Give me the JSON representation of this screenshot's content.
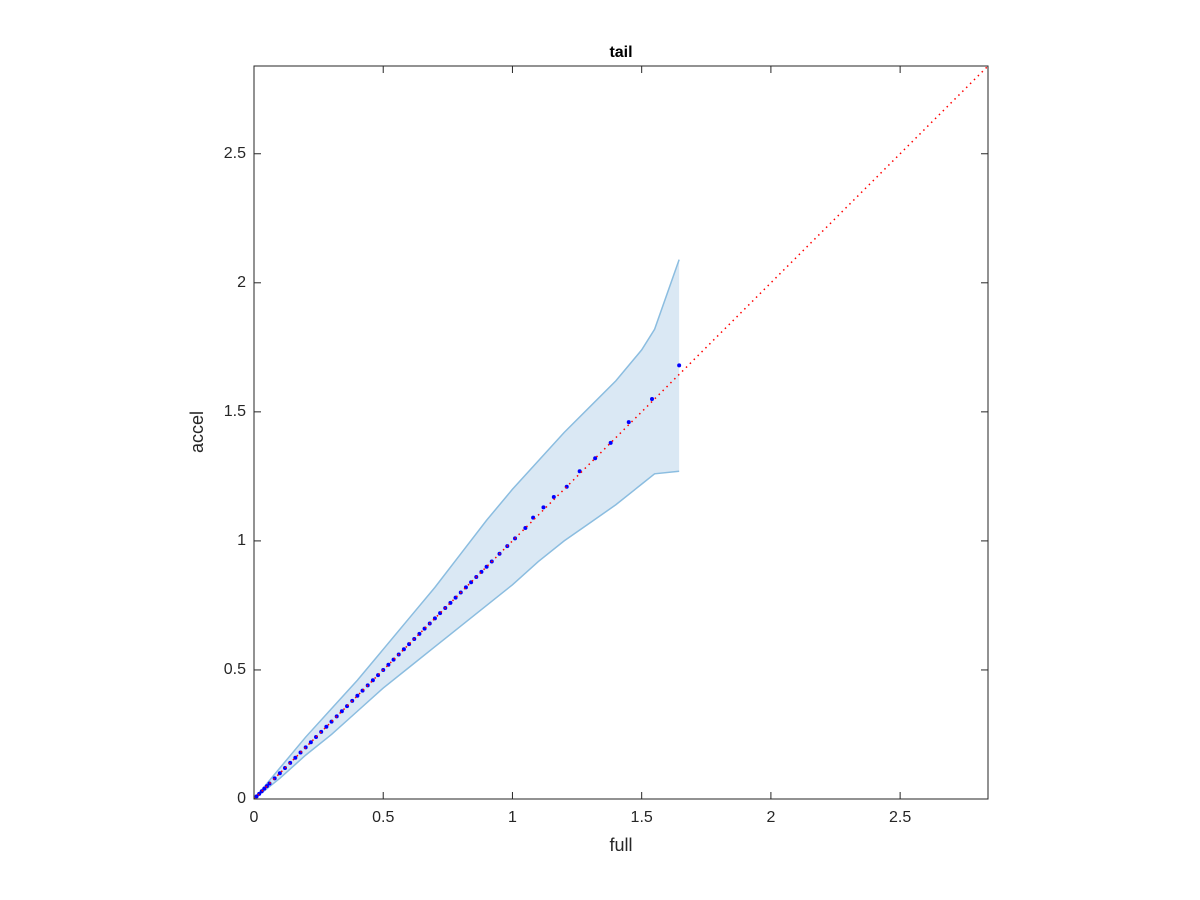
{
  "chart_data": {
    "type": "scatter",
    "title": "tail",
    "xlabel": "full",
    "ylabel": "accel",
    "xlim": [
      0,
      2.84
    ],
    "ylim": [
      0,
      2.84
    ],
    "xticks": [
      0,
      0.5,
      1,
      1.5,
      2,
      2.5
    ],
    "yticks": [
      0,
      0.5,
      1,
      1.5,
      2,
      2.5
    ],
    "points": {
      "color": "#0000ff",
      "x": [
        0.01,
        0.02,
        0.03,
        0.04,
        0.05,
        0.06,
        0.08,
        0.1,
        0.12,
        0.14,
        0.16,
        0.18,
        0.2,
        0.22,
        0.24,
        0.26,
        0.28,
        0.3,
        0.32,
        0.34,
        0.36,
        0.38,
        0.4,
        0.42,
        0.44,
        0.46,
        0.48,
        0.5,
        0.52,
        0.54,
        0.56,
        0.58,
        0.6,
        0.62,
        0.64,
        0.66,
        0.68,
        0.7,
        0.72,
        0.74,
        0.76,
        0.78,
        0.8,
        0.82,
        0.84,
        0.86,
        0.88,
        0.9,
        0.92,
        0.95,
        0.98,
        1.01,
        1.05,
        1.08,
        1.12,
        1.16,
        1.21,
        1.26,
        1.32,
        1.38,
        1.45,
        1.54,
        1.645
      ],
      "y": [
        0.01,
        0.02,
        0.03,
        0.04,
        0.05,
        0.06,
        0.08,
        0.1,
        0.12,
        0.14,
        0.16,
        0.18,
        0.2,
        0.22,
        0.24,
        0.26,
        0.28,
        0.3,
        0.32,
        0.34,
        0.36,
        0.38,
        0.4,
        0.42,
        0.44,
        0.46,
        0.48,
        0.5,
        0.52,
        0.54,
        0.56,
        0.58,
        0.6,
        0.62,
        0.64,
        0.66,
        0.68,
        0.7,
        0.72,
        0.74,
        0.76,
        0.78,
        0.8,
        0.82,
        0.84,
        0.86,
        0.88,
        0.9,
        0.92,
        0.95,
        0.98,
        1.01,
        1.05,
        1.09,
        1.13,
        1.17,
        1.21,
        1.27,
        1.32,
        1.38,
        1.46,
        1.55,
        1.68
      ]
    },
    "band": {
      "color": "#dae8f4",
      "edge_color": "#8bbde0",
      "x": [
        0,
        0.1,
        0.2,
        0.3,
        0.4,
        0.5,
        0.6,
        0.7,
        0.8,
        0.9,
        1.0,
        1.1,
        1.2,
        1.3,
        1.4,
        1.5,
        1.55,
        1.645
      ],
      "upper": [
        0,
        0.12,
        0.24,
        0.35,
        0.46,
        0.58,
        0.7,
        0.82,
        0.95,
        1.08,
        1.2,
        1.31,
        1.42,
        1.52,
        1.62,
        1.74,
        1.82,
        2.09
      ],
      "lower": [
        0,
        0.08,
        0.17,
        0.25,
        0.34,
        0.43,
        0.51,
        0.59,
        0.67,
        0.75,
        0.83,
        0.92,
        1.0,
        1.07,
        1.14,
        1.22,
        1.26,
        1.27
      ]
    },
    "reference": {
      "color": "#ff0000",
      "x": [
        0,
        2.84
      ],
      "y": [
        0,
        2.84
      ]
    }
  }
}
